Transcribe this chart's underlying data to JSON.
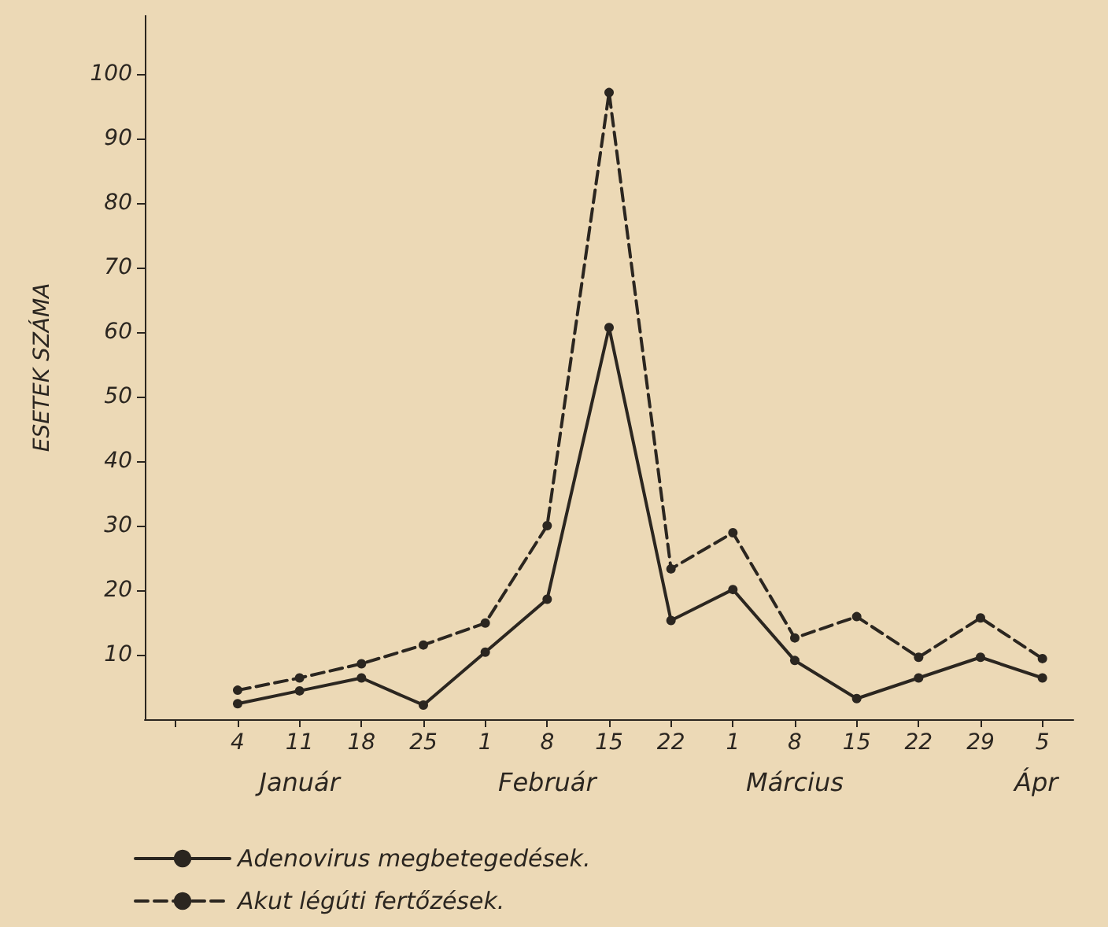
{
  "chart_data": {
    "type": "line",
    "ylabel": "ESETEK SZÁMA",
    "categories": [
      null,
      "4",
      "11",
      "18",
      "25",
      "1",
      "8",
      "15",
      "22",
      "1",
      "8",
      "15",
      "22",
      "29",
      "5"
    ],
    "series": [
      {
        "name": "Adenovirus megbetegedések.",
        "color": "#2b2620",
        "line_style": "solid",
        "values": [
          null,
          2.4,
          4.4,
          6.4,
          2.2,
          10.4,
          18.6,
          60.7,
          15.3,
          20.1,
          9.1,
          3.2,
          6.4,
          9.6,
          6.4
        ]
      },
      {
        "name": "Akut légúti fertőzések.",
        "color": "#2b2620",
        "line_style": "dashed",
        "values": [
          null,
          4.5,
          6.4,
          8.6,
          11.5,
          14.9,
          30,
          97.1,
          23.3,
          28.9,
          12.6,
          15.9,
          9.6,
          15.7,
          9.4
        ]
      }
    ],
    "ylim": [
      0,
      109
    ],
    "yticks": [
      10,
      20,
      30,
      40,
      50,
      60,
      70,
      80,
      90,
      100
    ],
    "grid": false,
    "legend": "bottom left",
    "marker": "circle",
    "annotations": [
      "Január",
      "Február",
      "Március",
      "Ápr"
    ]
  }
}
